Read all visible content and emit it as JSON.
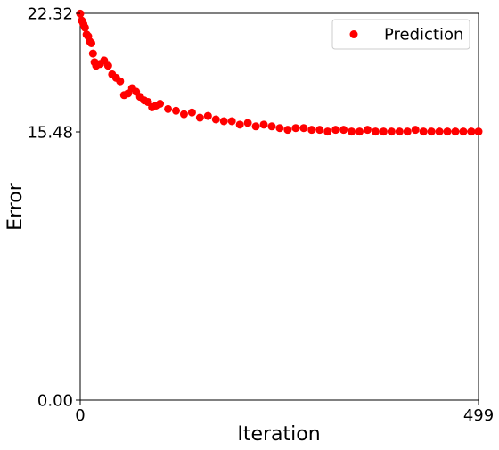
{
  "chart_data": {
    "type": "scatter",
    "title": "",
    "xlabel": "Iteration",
    "ylabel": "Error",
    "xlim": [
      0,
      499
    ],
    "ylim": [
      0,
      22.32
    ],
    "xticks": [
      "0",
      "499"
    ],
    "yticks": [
      "0.00",
      "15.48",
      "22.32"
    ],
    "grid": false,
    "legend": {
      "position": "top-right",
      "entries": [
        "Prediction"
      ]
    },
    "series": [
      {
        "name": "Prediction",
        "color": "#ff0000",
        "marker": "circle",
        "x": [
          0,
          2,
          4,
          6,
          8,
          10,
          12,
          14,
          16,
          18,
          20,
          25,
          30,
          35,
          40,
          45,
          50,
          55,
          60,
          65,
          70,
          75,
          80,
          85,
          90,
          95,
          100,
          110,
          120,
          130,
          140,
          150,
          160,
          170,
          180,
          190,
          200,
          210,
          220,
          230,
          240,
          250,
          260,
          270,
          280,
          290,
          300,
          310,
          320,
          330,
          340,
          350,
          360,
          370,
          380,
          390,
          400,
          410,
          420,
          430,
          440,
          450,
          460,
          470,
          480,
          490,
          499
        ],
        "y": [
          22.3,
          21.9,
          21.7,
          21.5,
          21.1,
          21.0,
          20.7,
          20.6,
          20.0,
          19.5,
          19.3,
          19.4,
          19.6,
          19.3,
          18.8,
          18.6,
          18.4,
          17.6,
          17.7,
          18.0,
          17.8,
          17.5,
          17.3,
          17.2,
          16.9,
          17.0,
          17.1,
          16.8,
          16.7,
          16.5,
          16.6,
          16.3,
          16.4,
          16.2,
          16.1,
          16.1,
          15.9,
          16.0,
          15.8,
          15.9,
          15.8,
          15.7,
          15.6,
          15.7,
          15.7,
          15.6,
          15.6,
          15.5,
          15.6,
          15.6,
          15.5,
          15.5,
          15.6,
          15.5,
          15.5,
          15.5,
          15.5,
          15.5,
          15.6,
          15.5,
          15.5,
          15.5,
          15.5,
          15.5,
          15.5,
          15.5,
          15.5
        ]
      }
    ]
  }
}
